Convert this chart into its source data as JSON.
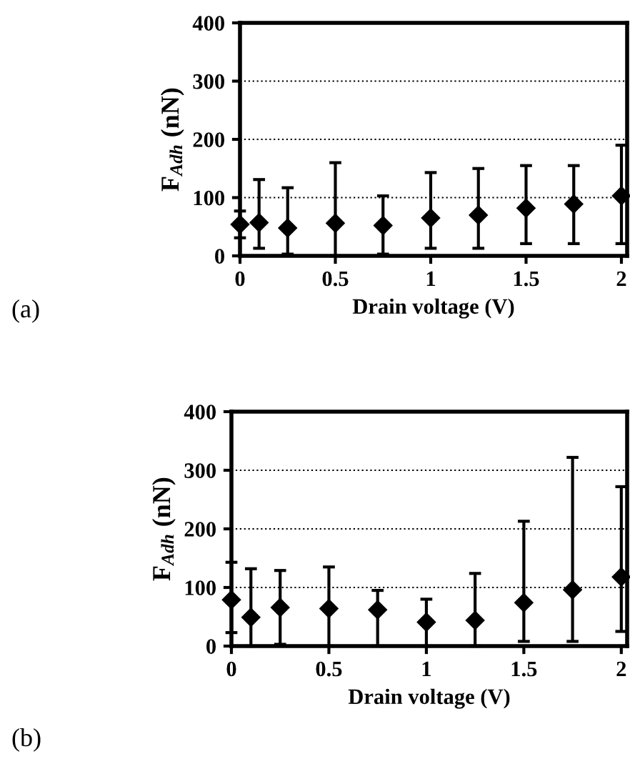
{
  "chart_data": [
    {
      "type": "scatter",
      "xlabel": "Drain voltage (V)",
      "ylabel": "F$_{Adh}$ (nN)",
      "annotations": [
        "(a)"
      ],
      "x": [
        0,
        0.1,
        0.25,
        0.5,
        0.75,
        1,
        1.25,
        1.5,
        1.75,
        2
      ],
      "series": [
        {
          "color": "#000000",
          "values": [
            54,
            57,
            48,
            56,
            52,
            65,
            70,
            82,
            89,
            103
          ],
          "errors": [
            [
              31,
              77
            ],
            [
              13,
              131
            ],
            [
              3,
              117
            ],
            [
              0,
              160
            ],
            [
              3,
              103
            ],
            [
              13,
              143
            ],
            [
              13,
              150
            ],
            [
              21,
              155
            ],
            [
              21,
              155
            ],
            [
              21,
              190
            ]
          ]
        }
      ],
      "xlim": [
        0,
        2.03
      ],
      "ylim": [
        0,
        400
      ],
      "xticks": [
        0,
        0.5,
        1,
        1.5,
        2
      ],
      "yticks": [
        0,
        100,
        200,
        300,
        400
      ],
      "grid": "y",
      "marker": "diamond",
      "legend": false
    },
    {
      "type": "scatter",
      "xlabel": "Drain voltage (V)",
      "ylabel": "F$_{Adh}$ (nN)",
      "annotations": [
        "(b)"
      ],
      "x": [
        0,
        0.1,
        0.25,
        0.5,
        0.75,
        1,
        1.25,
        1.5,
        1.75,
        2
      ],
      "series": [
        {
          "color": "#000000",
          "values": [
            79,
            49,
            66,
            64,
            62,
            41,
            44,
            74,
            96,
            118
          ],
          "errors": [
            [
              23,
              143
            ],
            [
              0,
              132
            ],
            [
              3,
              129
            ],
            [
              0,
              135
            ],
            [
              0,
              95
            ],
            [
              0,
              80
            ],
            [
              0,
              124
            ],
            [
              8,
              213
            ],
            [
              8,
              322
            ],
            [
              25,
              272
            ]
          ]
        }
      ],
      "xlim": [
        0,
        2.03
      ],
      "ylim": [
        0,
        400
      ],
      "xticks": [
        0,
        0.5,
        1,
        1.5,
        2
      ],
      "yticks": [
        0,
        100,
        200,
        300,
        400
      ],
      "grid": "y",
      "marker": "diamond",
      "legend": false
    }
  ]
}
